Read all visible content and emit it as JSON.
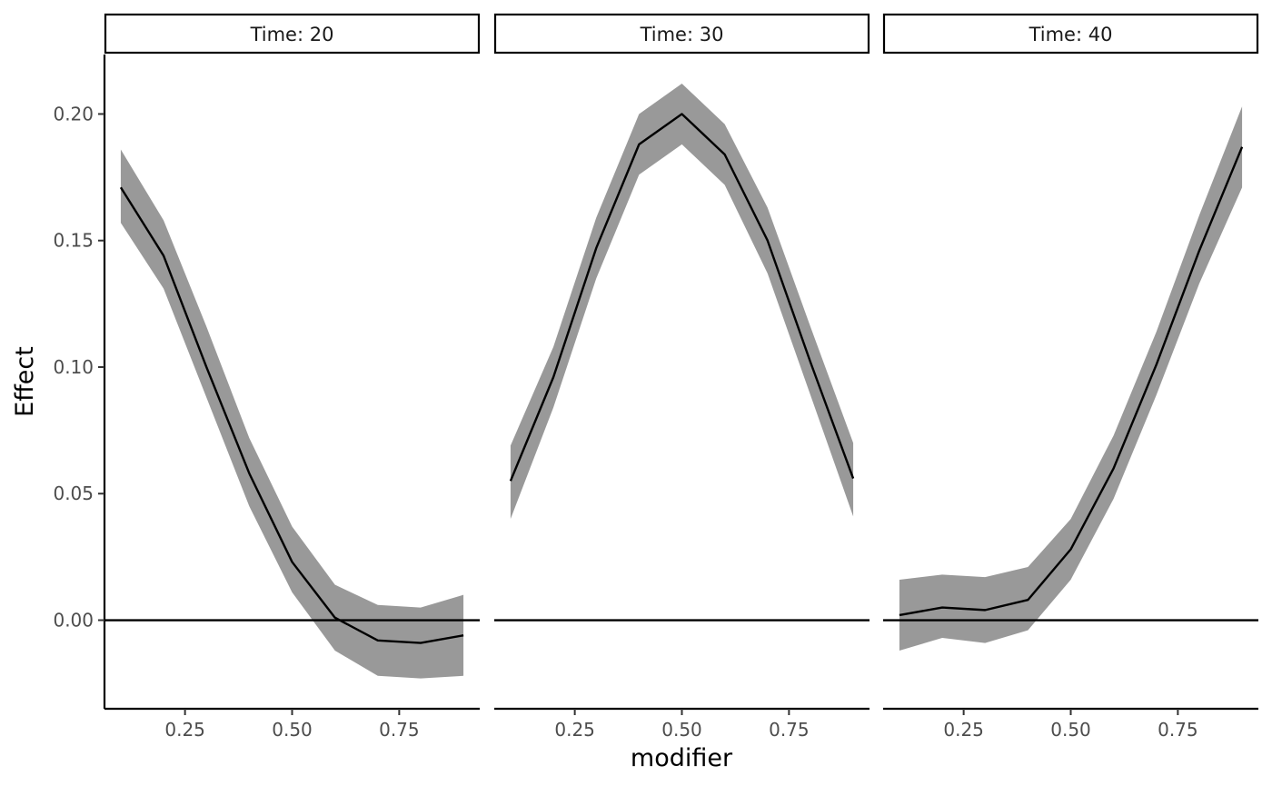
{
  "chart_data": {
    "type": "line",
    "xlabel": "modifier",
    "ylabel": "Effect",
    "xlim": [
      0.062,
      0.938
    ],
    "ylim": [
      -0.035,
      0.2235
    ],
    "x_ticks": [
      0.25,
      0.5,
      0.75
    ],
    "x_tick_labels": [
      "0.25",
      "0.50",
      "0.75"
    ],
    "y_ticks": [
      0.0,
      0.05,
      0.1,
      0.15,
      0.2
    ],
    "y_tick_labels": [
      "0.00",
      "0.05",
      "0.10",
      "0.15",
      "0.20"
    ],
    "reference_line_y": 0,
    "grid": false,
    "ribbon_color": "#999999",
    "line_color": "#000000",
    "panels": [
      {
        "strip": "Time: 20",
        "x": [
          0.1,
          0.2,
          0.3,
          0.4,
          0.5,
          0.6,
          0.7,
          0.8,
          0.9
        ],
        "y": [
          0.171,
          0.144,
          0.1,
          0.058,
          0.023,
          0.001,
          -0.008,
          -0.009,
          -0.006
        ],
        "lower": [
          0.157,
          0.131,
          0.088,
          0.045,
          0.011,
          -0.012,
          -0.022,
          -0.023,
          -0.022
        ],
        "upper": [
          0.186,
          0.158,
          0.116,
          0.072,
          0.037,
          0.014,
          0.006,
          0.005,
          0.01
        ]
      },
      {
        "strip": "Time: 30",
        "x": [
          0.1,
          0.2,
          0.3,
          0.4,
          0.5,
          0.6,
          0.7,
          0.8,
          0.9
        ],
        "y": [
          0.055,
          0.096,
          0.147,
          0.188,
          0.2,
          0.184,
          0.15,
          0.102,
          0.056
        ],
        "lower": [
          0.04,
          0.084,
          0.135,
          0.176,
          0.188,
          0.172,
          0.137,
          0.089,
          0.041
        ],
        "upper": [
          0.069,
          0.108,
          0.159,
          0.2,
          0.212,
          0.196,
          0.163,
          0.116,
          0.07
        ]
      },
      {
        "strip": "Time: 40",
        "x": [
          0.1,
          0.2,
          0.3,
          0.4,
          0.5,
          0.6,
          0.7,
          0.8,
          0.9
        ],
        "y": [
          0.002,
          0.005,
          0.004,
          0.008,
          0.028,
          0.06,
          0.101,
          0.146,
          0.187
        ],
        "lower": [
          -0.012,
          -0.007,
          -0.009,
          -0.004,
          0.016,
          0.048,
          0.089,
          0.133,
          0.171
        ],
        "upper": [
          0.016,
          0.018,
          0.017,
          0.021,
          0.04,
          0.073,
          0.114,
          0.16,
          0.203
        ]
      }
    ]
  }
}
